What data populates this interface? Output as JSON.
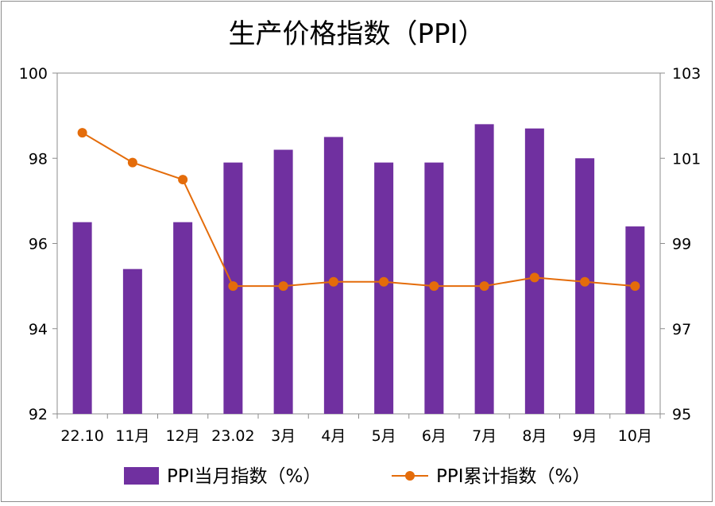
{
  "chart_data": {
    "type": "bar+line",
    "title": "生产价格指数（PPI）",
    "categories": [
      "22.10",
      "11月",
      "12月",
      "23.02",
      "3月",
      "4月",
      "5月",
      "6月",
      "7月",
      "8月",
      "9月",
      "10月"
    ],
    "series": [
      {
        "name": "PPI当月指数（%）",
        "type": "bar",
        "axis": "left",
        "color": "#7030A0",
        "values": [
          96.5,
          95.4,
          96.5,
          97.9,
          98.2,
          98.5,
          97.9,
          97.9,
          98.8,
          98.7,
          98.0,
          96.4
        ]
      },
      {
        "name": "PPI累计指数（%）",
        "type": "line",
        "axis": "right",
        "color": "#E46C0A",
        "values": [
          101.6,
          100.9,
          100.5,
          98.0,
          98.0,
          98.1,
          98.1,
          98.0,
          98.0,
          98.2,
          98.1,
          98.0
        ]
      }
    ],
    "y_left": {
      "min": 92,
      "max": 100,
      "ticks": [
        "92",
        "94",
        "96",
        "98",
        "100"
      ]
    },
    "y_right": {
      "min": 95,
      "max": 103,
      "ticks": [
        "95",
        "97",
        "99",
        "101",
        "103"
      ]
    },
    "grid": false,
    "legend_position": "bottom"
  }
}
